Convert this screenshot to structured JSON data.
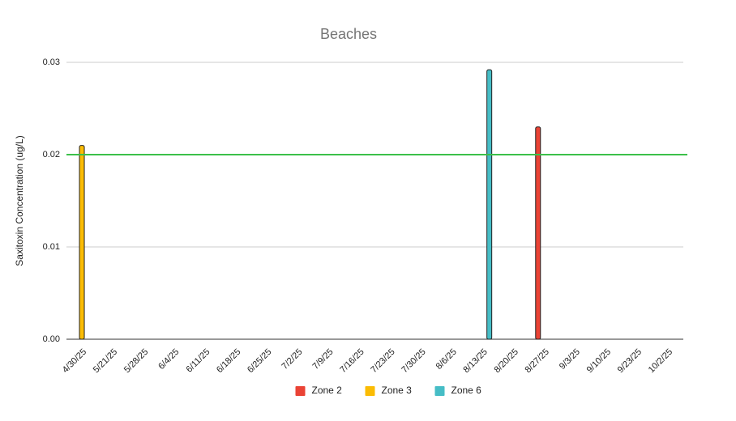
{
  "chart_data": {
    "type": "bar",
    "title": "Beaches",
    "y_label": "Saxitoxin Concentration (ug/L)",
    "categories": [
      "4/30/25",
      "5/21/25",
      "5/28/25",
      "6/4/25",
      "6/11/25",
      "6/18/25",
      "6/25/25",
      "7/2/25",
      "7/9/25",
      "7/16/25",
      "7/23/25",
      "7/30/25",
      "8/6/25",
      "8/13/25",
      "8/20/25",
      "8/27/25",
      "9/3/25",
      "9/10/25",
      "9/23/25",
      "10/2/25"
    ],
    "series": [
      {
        "name": "Zone 2",
        "color": "#ea4335",
        "values": [
          null,
          null,
          null,
          null,
          null,
          null,
          null,
          null,
          null,
          null,
          null,
          null,
          null,
          null,
          null,
          0.023,
          null,
          null,
          null,
          null
        ]
      },
      {
        "name": "Zone 3",
        "color": "#fbbc04",
        "values": [
          0.021,
          null,
          null,
          null,
          null,
          null,
          null,
          null,
          null,
          null,
          null,
          null,
          null,
          null,
          null,
          null,
          null,
          null,
          null,
          null
        ]
      },
      {
        "name": "Zone 6",
        "color": "#46bdc6",
        "values": [
          null,
          null,
          null,
          null,
          null,
          null,
          null,
          null,
          null,
          null,
          null,
          null,
          null,
          0.0292,
          null,
          null,
          null,
          null,
          null,
          null
        ]
      }
    ],
    "ylim": [
      0,
      0.03
    ],
    "yticks": [
      {
        "value": 0,
        "label": "0.00"
      },
      {
        "value": 0.01,
        "label": "0.01"
      },
      {
        "value": 0.02,
        "label": "0.02"
      },
      {
        "value": 0.03,
        "label": "0.03"
      }
    ],
    "grid": true,
    "reference_line": {
      "value": 0.02,
      "color": "#3cc04a"
    },
    "legend": "bottom"
  }
}
